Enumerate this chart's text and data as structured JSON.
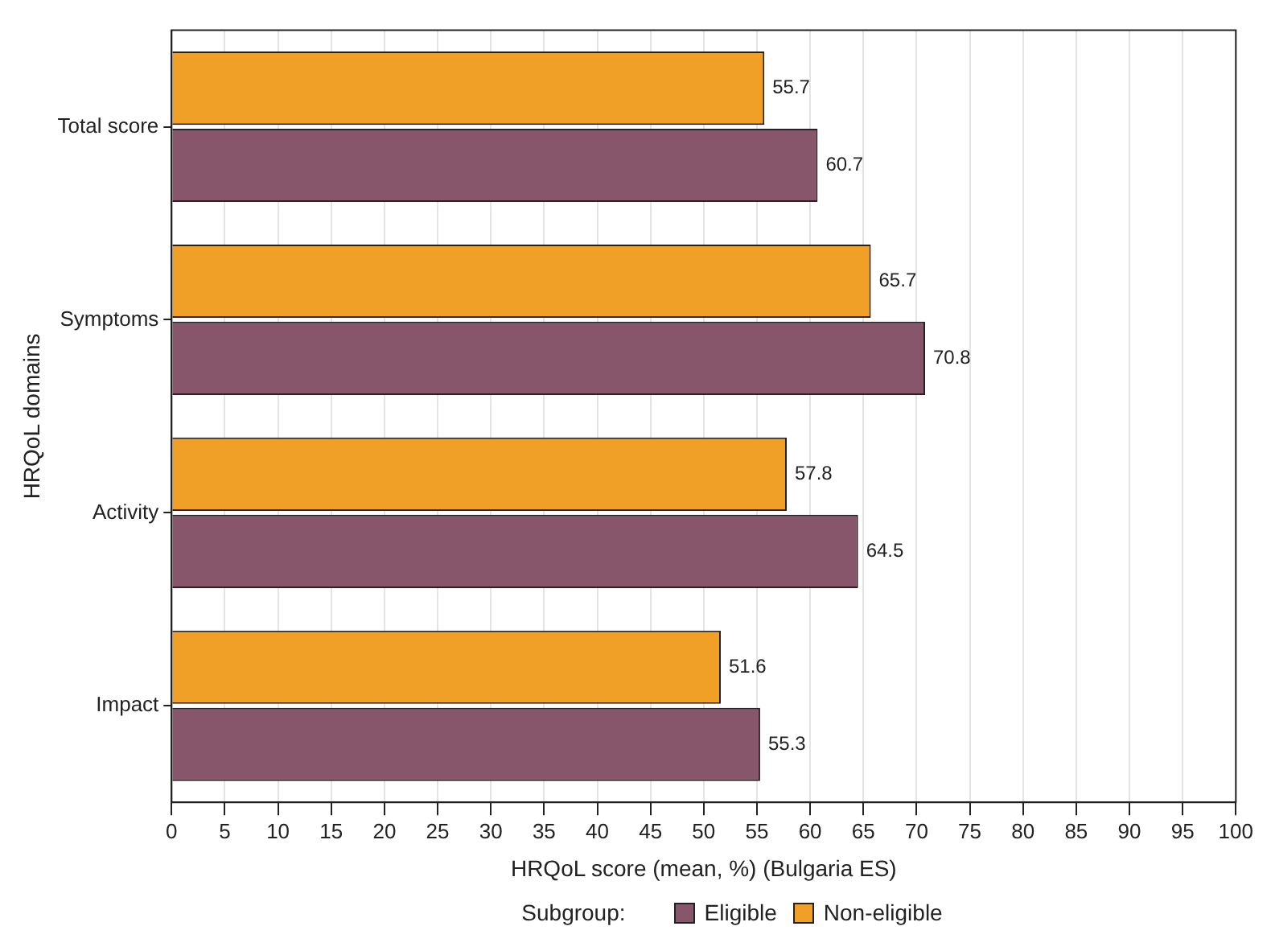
{
  "chart_data": {
    "type": "bar",
    "orientation": "horizontal",
    "categories": [
      "Total score",
      "Symptoms",
      "Activity",
      "Impact"
    ],
    "series": [
      {
        "name": "Non-eligible",
        "color": "#f0a026",
        "values": [
          55.7,
          65.7,
          57.8,
          51.6
        ]
      },
      {
        "name": "Eligible",
        "color": "#87566a",
        "values": [
          60.7,
          70.8,
          64.5,
          55.3
        ]
      }
    ],
    "xlabel": "HRQoL score (mean, %) (Bulgaria ES)",
    "ylabel": "HRQoL domains",
    "legend_title": "Subgroup:",
    "legend": "bottom",
    "xlim": [
      0,
      100
    ],
    "xticks": [
      0,
      5,
      10,
      15,
      20,
      25,
      30,
      35,
      40,
      45,
      50,
      55,
      60,
      65,
      70,
      75,
      80,
      85,
      90,
      95,
      100
    ],
    "grid": "x",
    "data_labels": true
  }
}
